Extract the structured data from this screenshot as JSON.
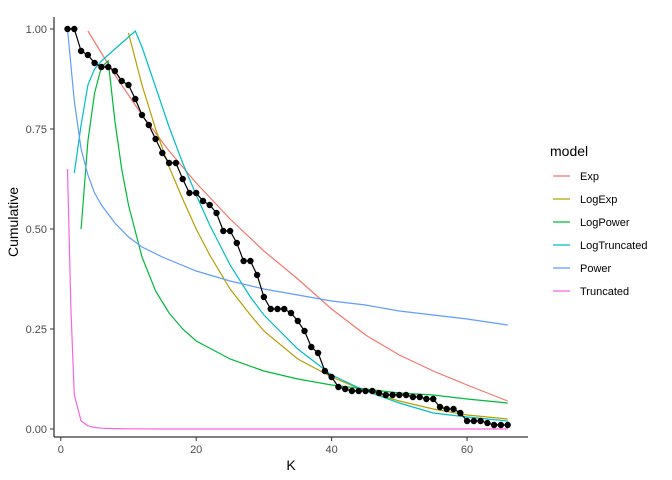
{
  "chart_data": {
    "type": "line",
    "xlabel": "K",
    "ylabel": "Cumulative",
    "xlim": [
      -1,
      69
    ],
    "ylim": [
      -0.02,
      1.03
    ],
    "x_ticks": [
      0,
      20,
      40,
      60
    ],
    "y_ticks": [
      0.0,
      0.25,
      0.5,
      0.75,
      1.0
    ],
    "x_tick_labels": [
      "0",
      "20",
      "40",
      "60"
    ],
    "y_tick_labels": [
      "0.00",
      "0.25",
      "0.50",
      "0.75",
      "1.00"
    ],
    "grid": false,
    "legend": {
      "title": "model",
      "position": "right",
      "entries": [
        "Exp",
        "LogExp",
        "LogPower",
        "LogTruncated",
        "Power",
        "Truncated"
      ]
    },
    "observed": {
      "color": "#000000",
      "x": [
        1,
        2,
        3,
        4,
        5,
        6,
        7,
        8,
        9,
        10,
        11,
        12,
        13,
        14,
        15,
        16,
        17,
        18,
        19,
        20,
        21,
        22,
        23,
        24,
        25,
        26,
        27,
        28,
        29,
        30,
        31,
        32,
        33,
        34,
        35,
        36,
        37,
        38,
        39,
        40,
        41,
        42,
        43,
        44,
        45,
        46,
        47,
        48,
        49,
        50,
        51,
        52,
        53,
        54,
        55,
        56,
        57,
        58,
        59,
        60,
        61,
        62,
        63,
        64,
        65,
        66
      ],
      "y": [
        1.0,
        1.0,
        0.945,
        0.935,
        0.915,
        0.905,
        0.905,
        0.895,
        0.87,
        0.86,
        0.825,
        0.785,
        0.76,
        0.725,
        0.69,
        0.665,
        0.665,
        0.625,
        0.59,
        0.59,
        0.57,
        0.56,
        0.54,
        0.495,
        0.495,
        0.465,
        0.42,
        0.42,
        0.385,
        0.33,
        0.3,
        0.3,
        0.3,
        0.29,
        0.27,
        0.245,
        0.205,
        0.19,
        0.145,
        0.13,
        0.105,
        0.1,
        0.095,
        0.095,
        0.095,
        0.095,
        0.09,
        0.085,
        0.085,
        0.085,
        0.085,
        0.08,
        0.08,
        0.075,
        0.075,
        0.055,
        0.05,
        0.05,
        0.04,
        0.02,
        0.02,
        0.02,
        0.015,
        0.01,
        0.01,
        0.01
      ]
    },
    "series": [
      {
        "name": "Exp",
        "color": "#F8766D",
        "x": [
          4,
          6,
          8,
          10,
          12,
          14,
          16,
          18,
          20,
          25,
          30,
          35,
          40,
          45,
          50,
          55,
          60,
          66
        ],
        "y": [
          0.995,
          0.94,
          0.885,
          0.835,
          0.785,
          0.74,
          0.695,
          0.655,
          0.615,
          0.525,
          0.445,
          0.375,
          0.3,
          0.235,
          0.185,
          0.145,
          0.11,
          0.07
        ]
      },
      {
        "name": "LogExp",
        "color": "#B79F00",
        "x": [
          10,
          12,
          14,
          16,
          18,
          20,
          22,
          25,
          28,
          30,
          35,
          40,
          45,
          50,
          55,
          60,
          66
        ],
        "y": [
          0.99,
          0.86,
          0.75,
          0.655,
          0.575,
          0.5,
          0.435,
          0.35,
          0.285,
          0.245,
          0.175,
          0.13,
          0.095,
          0.07,
          0.05,
          0.035,
          0.025
        ]
      },
      {
        "name": "LogPower",
        "color": "#00BA38",
        "x": [
          3,
          4,
          5,
          6,
          7,
          8,
          9,
          10,
          12,
          14,
          16,
          18,
          20,
          25,
          30,
          35,
          40,
          45,
          50,
          55,
          60,
          66
        ],
        "y": [
          0.5,
          0.72,
          0.84,
          0.905,
          0.92,
          0.77,
          0.65,
          0.56,
          0.43,
          0.345,
          0.29,
          0.25,
          0.22,
          0.175,
          0.145,
          0.125,
          0.11,
          0.1,
          0.09,
          0.085,
          0.075,
          0.065
        ]
      },
      {
        "name": "LogTruncated",
        "color": "#00BFC4",
        "x": [
          2,
          3,
          4,
          5,
          6,
          7,
          8,
          9,
          10,
          11,
          12,
          14,
          16,
          18,
          20,
          22,
          25,
          28,
          30,
          35,
          40,
          45,
          50,
          55,
          60,
          66
        ],
        "y": [
          0.64,
          0.76,
          0.86,
          0.9,
          0.92,
          0.935,
          0.95,
          0.965,
          0.98,
          0.995,
          0.955,
          0.855,
          0.755,
          0.665,
          0.585,
          0.51,
          0.41,
          0.33,
          0.285,
          0.2,
          0.135,
          0.095,
          0.065,
          0.04,
          0.03,
          0.02
        ]
      },
      {
        "name": "Power",
        "color": "#619CFF",
        "x": [
          1,
          2,
          3,
          4,
          5,
          6,
          8,
          10,
          12,
          15,
          20,
          25,
          30,
          35,
          40,
          45,
          50,
          55,
          60,
          66
        ],
        "y": [
          1.0,
          0.82,
          0.7,
          0.635,
          0.59,
          0.56,
          0.515,
          0.48,
          0.455,
          0.43,
          0.395,
          0.37,
          0.35,
          0.335,
          0.32,
          0.31,
          0.295,
          0.285,
          0.275,
          0.26
        ]
      },
      {
        "name": "Truncated",
        "color": "#F564E3",
        "x": [
          1,
          1.5,
          2,
          3,
          4,
          5,
          6,
          8,
          10,
          15,
          20,
          30,
          40,
          50,
          60,
          66
        ],
        "y": [
          0.65,
          0.3,
          0.085,
          0.02,
          0.008,
          0.004,
          0.002,
          0.001,
          0.0005,
          0,
          0,
          0,
          0,
          0,
          0,
          0
        ]
      }
    ]
  }
}
